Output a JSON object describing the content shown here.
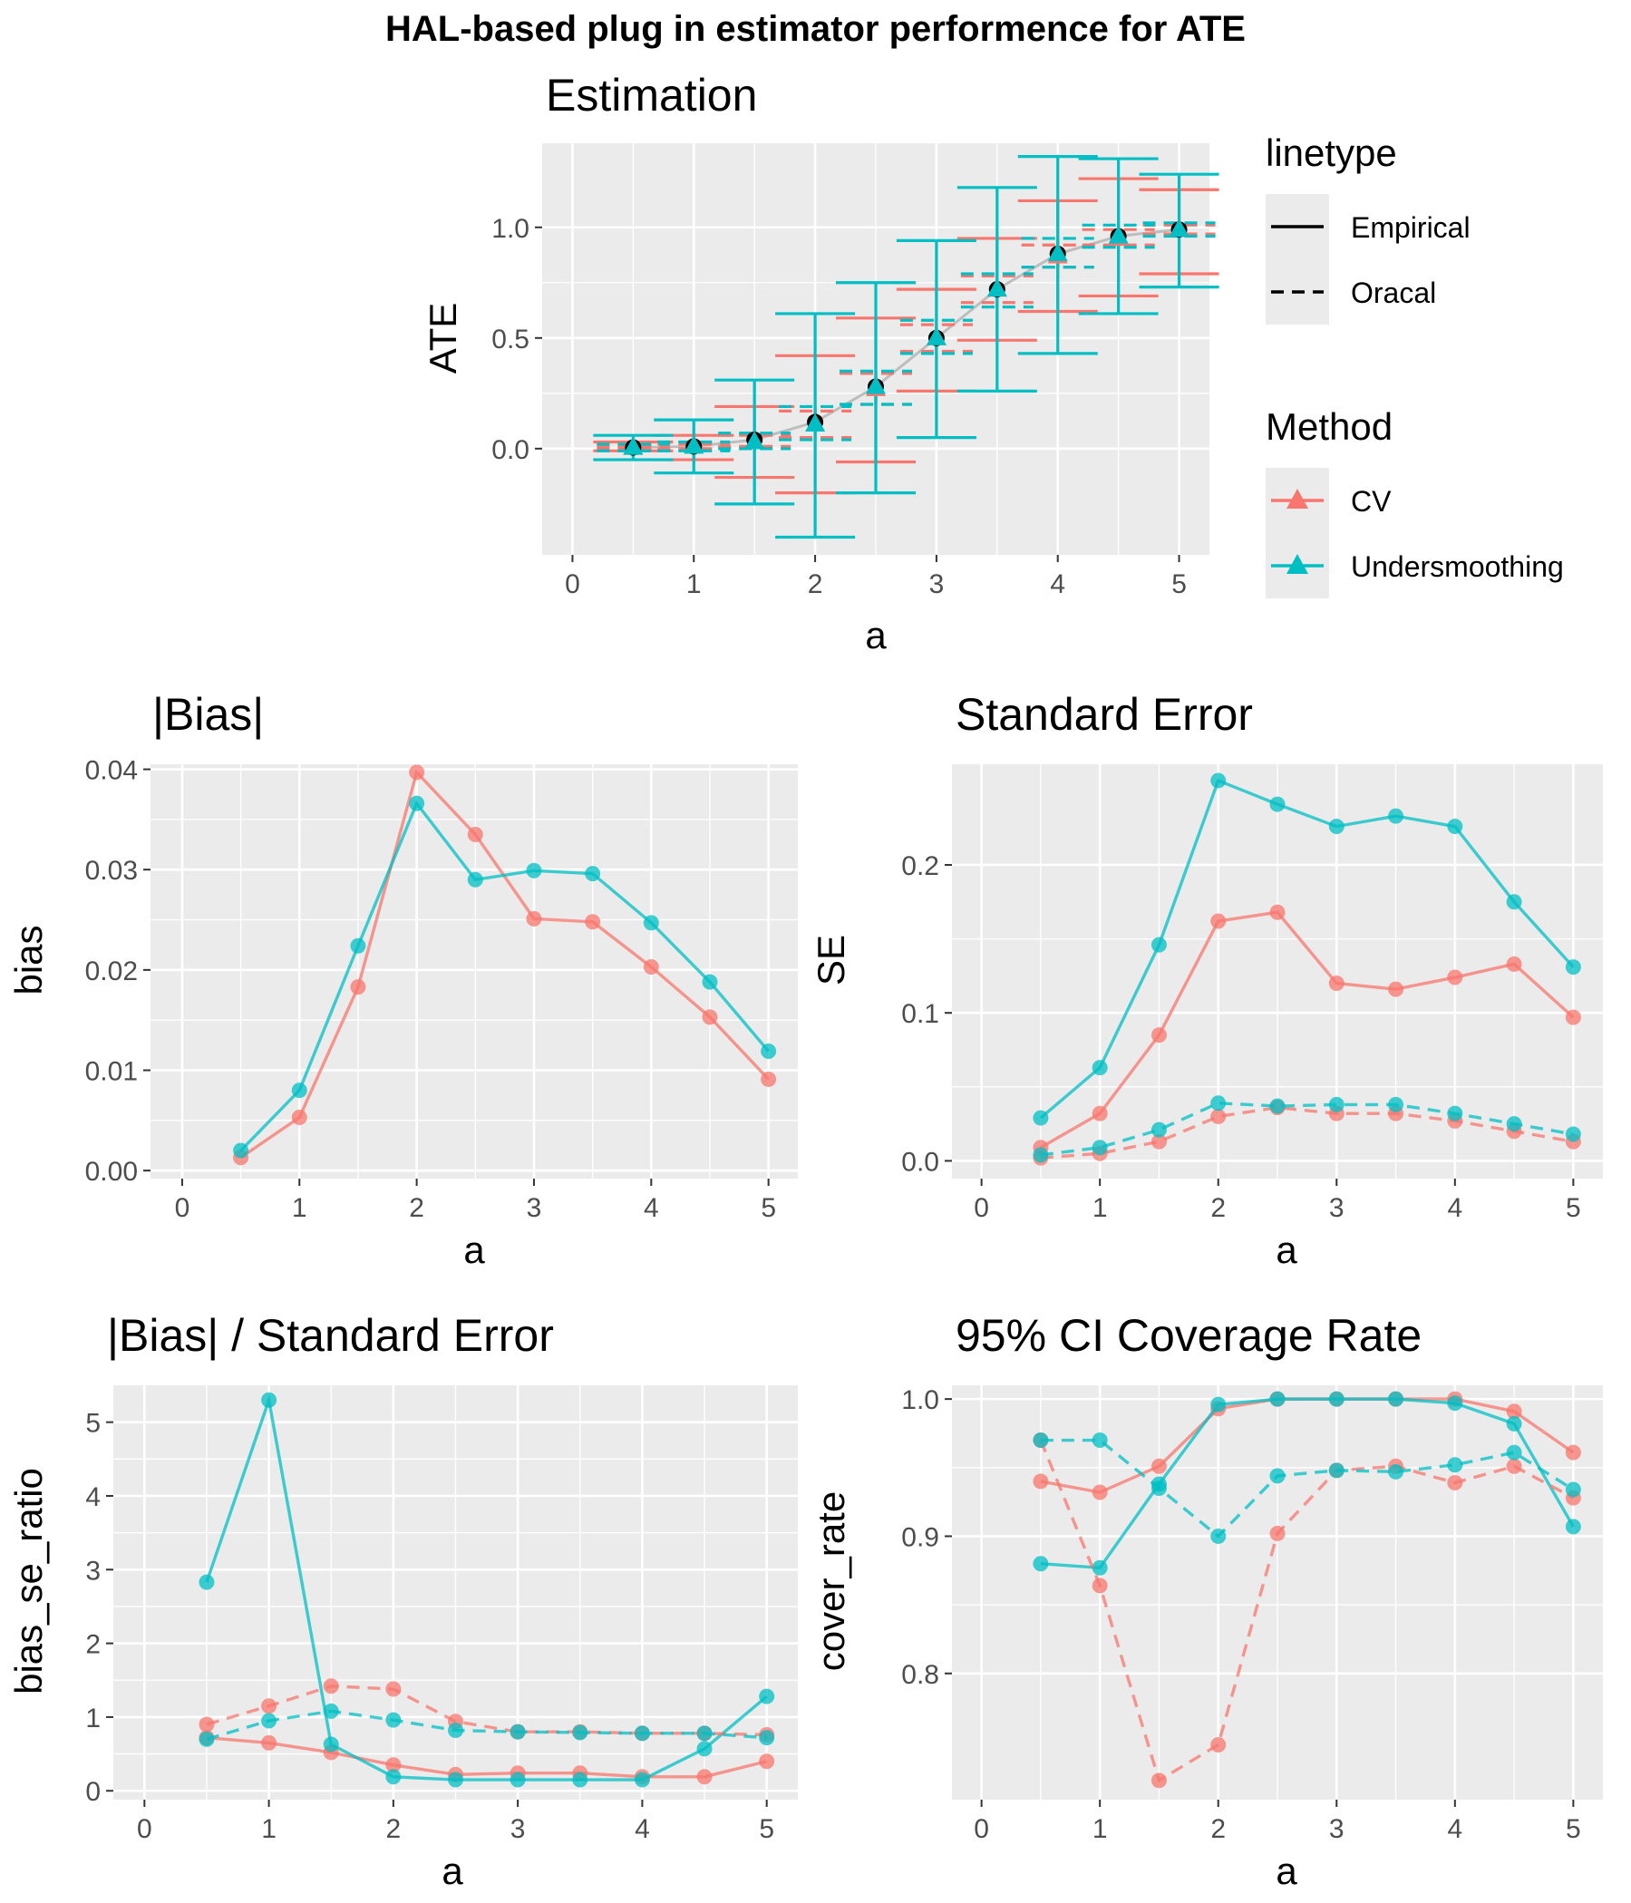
{
  "main_title": "HAL-based plug in estimator performence for ATE",
  "colors": {
    "CV": "#F8766D",
    "Undersmoothing": "#00BFC4",
    "truth": "#bdbdbd",
    "panel_bg": "#ebebeb",
    "grid": "#ffffff"
  },
  "legend": {
    "linetype_title": "linetype",
    "linetype_items": [
      {
        "label": "Empirical",
        "style": "solid"
      },
      {
        "label": "Oracal",
        "style": "dashed"
      }
    ],
    "method_title": "Method",
    "method_items": [
      {
        "label": "CV",
        "color": "#F8766D"
      },
      {
        "label": "Undersmoothing",
        "color": "#00BFC4"
      }
    ]
  },
  "chart_data": [
    {
      "id": "estimation",
      "type": "errorbar",
      "title": "Estimation",
      "xlabel": "a",
      "ylabel": "ATE",
      "xlim": [
        -0.25,
        5.25
      ],
      "ylim": [
        -0.48,
        1.38
      ],
      "x_ticks": [
        0,
        1,
        2,
        3,
        4,
        5
      ],
      "y_ticks": [
        0.0,
        0.5,
        1.0
      ],
      "y_tick_labels": [
        "0.0",
        "0.5",
        "1.0"
      ],
      "x": [
        0.5,
        1.0,
        1.5,
        2.0,
        2.5,
        3.0,
        3.5,
        4.0,
        4.5,
        5.0
      ],
      "truth": [
        0.005,
        0.01,
        0.04,
        0.12,
        0.28,
        0.5,
        0.72,
        0.88,
        0.96,
        0.99
      ],
      "series": [
        {
          "name": "CV",
          "linetype": "Empirical",
          "estimate": [
            0.005,
            0.01,
            0.03,
            0.11,
            0.27,
            0.5,
            0.72,
            0.87,
            0.95,
            0.99
          ],
          "lower": [
            -0.01,
            -0.05,
            -0.13,
            -0.2,
            -0.06,
            0.26,
            0.49,
            0.62,
            0.69,
            0.79
          ],
          "upper": [
            0.03,
            0.06,
            0.19,
            0.42,
            0.59,
            0.72,
            0.95,
            1.12,
            1.22,
            1.17
          ]
        },
        {
          "name": "CV",
          "linetype": "Oracal",
          "estimate": [
            0.005,
            0.01,
            0.03,
            0.11,
            0.27,
            0.5,
            0.72,
            0.87,
            0.95,
            0.99
          ],
          "lower": [
            0.0,
            0.0,
            0.01,
            0.05,
            0.2,
            0.44,
            0.66,
            0.82,
            0.92,
            0.97
          ],
          "upper": [
            0.01,
            0.02,
            0.06,
            0.17,
            0.34,
            0.56,
            0.78,
            0.92,
            0.99,
            1.01
          ]
        },
        {
          "name": "Undersmoothing",
          "linetype": "Empirical",
          "estimate": [
            0.005,
            0.01,
            0.03,
            0.11,
            0.28,
            0.5,
            0.72,
            0.88,
            0.96,
            0.99
          ],
          "lower": [
            -0.05,
            -0.11,
            -0.25,
            -0.4,
            -0.2,
            0.05,
            0.26,
            0.43,
            0.61,
            0.73
          ],
          "upper": [
            0.06,
            0.13,
            0.31,
            0.61,
            0.75,
            0.94,
            1.18,
            1.32,
            1.31,
            1.24
          ]
        },
        {
          "name": "Undersmoothing",
          "linetype": "Oracal",
          "estimate": [
            0.005,
            0.01,
            0.03,
            0.11,
            0.28,
            0.5,
            0.72,
            0.88,
            0.96,
            0.99
          ],
          "lower": [
            -0.01,
            -0.01,
            0.0,
            0.04,
            0.2,
            0.43,
            0.64,
            0.82,
            0.91,
            0.96
          ],
          "upper": [
            0.02,
            0.03,
            0.07,
            0.19,
            0.35,
            0.58,
            0.79,
            0.95,
            1.01,
            1.02
          ]
        }
      ]
    },
    {
      "id": "bias",
      "type": "line",
      "title": "|Bias|",
      "xlabel": "a",
      "ylabel": "bias",
      "xlim": [
        -0.27,
        5.25
      ],
      "ylim": [
        -0.0008,
        0.0405
      ],
      "x_ticks": [
        0,
        1,
        2,
        3,
        4,
        5
      ],
      "y_ticks": [
        0,
        0.01,
        0.02,
        0.03,
        0.04
      ],
      "y_tick_labels": [
        "0.00",
        "0.01",
        "0.02",
        "0.03",
        "0.04"
      ],
      "x": [
        0.5,
        1.0,
        1.5,
        2.0,
        2.5,
        3.0,
        3.5,
        4.0,
        4.5,
        5.0
      ],
      "series": [
        {
          "name": "CV",
          "linetype": "Empirical",
          "values": [
            0.0013,
            0.0053,
            0.0183,
            0.0397,
            0.0335,
            0.0251,
            0.0248,
            0.0203,
            0.0153,
            0.0091
          ]
        },
        {
          "name": "Undersmoothing",
          "linetype": "Empirical",
          "values": [
            0.002,
            0.008,
            0.0224,
            0.0366,
            0.029,
            0.0299,
            0.0296,
            0.0247,
            0.0188,
            0.0119
          ]
        }
      ]
    },
    {
      "id": "se",
      "type": "line",
      "title": "Standard Error",
      "xlabel": "a",
      "ylabel": "SE",
      "xlim": [
        -0.25,
        5.25
      ],
      "ylim": [
        -0.012,
        0.268
      ],
      "x_ticks": [
        0,
        1,
        2,
        3,
        4,
        5
      ],
      "y_ticks": [
        0.0,
        0.1,
        0.2
      ],
      "y_tick_labels": [
        "0.0",
        "0.1",
        "0.2"
      ],
      "x": [
        0.5,
        1.0,
        1.5,
        2.0,
        2.5,
        3.0,
        3.5,
        4.0,
        4.5,
        5.0
      ],
      "series": [
        {
          "name": "CV",
          "linetype": "Empirical",
          "values": [
            0.009,
            0.032,
            0.085,
            0.162,
            0.168,
            0.12,
            0.116,
            0.124,
            0.133,
            0.097
          ]
        },
        {
          "name": "Undersmoothing",
          "linetype": "Empirical",
          "values": [
            0.029,
            0.063,
            0.146,
            0.257,
            0.241,
            0.226,
            0.233,
            0.226,
            0.175,
            0.131
          ]
        },
        {
          "name": "CV",
          "linetype": "Oracal",
          "values": [
            0.002,
            0.005,
            0.013,
            0.03,
            0.036,
            0.032,
            0.032,
            0.027,
            0.02,
            0.013
          ]
        },
        {
          "name": "Undersmoothing",
          "linetype": "Oracal",
          "values": [
            0.004,
            0.009,
            0.021,
            0.039,
            0.037,
            0.038,
            0.038,
            0.032,
            0.025,
            0.018
          ]
        }
      ]
    },
    {
      "id": "ratio",
      "type": "line",
      "title": "|Bias| / Standard Error",
      "xlabel": "a",
      "ylabel": "bias_se_ratio",
      "xlim": [
        -0.25,
        5.25
      ],
      "ylim": [
        -0.12,
        5.5
      ],
      "x_ticks": [
        0,
        1,
        2,
        3,
        4,
        5
      ],
      "y_ticks": [
        0,
        1,
        2,
        3,
        4,
        5
      ],
      "y_tick_labels": [
        "0",
        "1",
        "2",
        "3",
        "4",
        "5"
      ],
      "x": [
        0.5,
        1.0,
        1.5,
        2.0,
        2.5,
        3.0,
        3.5,
        4.0,
        4.5,
        5.0
      ],
      "series": [
        {
          "name": "CV",
          "linetype": "Empirical",
          "values": [
            0.72,
            0.65,
            0.52,
            0.35,
            0.22,
            0.24,
            0.24,
            0.19,
            0.19,
            0.4
          ]
        },
        {
          "name": "Undersmoothing",
          "linetype": "Empirical",
          "values": [
            2.83,
            5.3,
            0.63,
            0.19,
            0.15,
            0.15,
            0.15,
            0.15,
            0.57,
            1.28
          ]
        },
        {
          "name": "CV",
          "linetype": "Oracal",
          "values": [
            0.9,
            1.15,
            1.42,
            1.38,
            0.94,
            0.8,
            0.8,
            0.78,
            0.78,
            0.76
          ]
        },
        {
          "name": "Undersmoothing",
          "linetype": "Oracal",
          "values": [
            0.7,
            0.95,
            1.08,
            0.96,
            0.82,
            0.8,
            0.79,
            0.78,
            0.78,
            0.72
          ]
        }
      ]
    },
    {
      "id": "coverage",
      "type": "line",
      "title": "95% CI Coverage Rate",
      "xlabel": "a",
      "ylabel": "cover_rate",
      "xlim": [
        -0.25,
        5.25
      ],
      "ylim": [
        0.708,
        1.01
      ],
      "x_ticks": [
        0,
        1,
        2,
        3,
        4,
        5
      ],
      "y_ticks": [
        0.8,
        0.9,
        1.0
      ],
      "y_tick_labels": [
        "0.8",
        "0.9",
        "1.0"
      ],
      "x": [
        0.5,
        1.0,
        1.5,
        2.0,
        2.5,
        3.0,
        3.5,
        4.0,
        4.5,
        5.0
      ],
      "series": [
        {
          "name": "CV",
          "linetype": "Empirical",
          "values": [
            0.94,
            0.932,
            0.951,
            0.993,
            1.0,
            1.0,
            1.0,
            1.0,
            0.991,
            0.961
          ]
        },
        {
          "name": "Undersmoothing",
          "linetype": "Empirical",
          "values": [
            0.88,
            0.877,
            0.938,
            0.996,
            1.0,
            1.0,
            1.0,
            0.997,
            0.982,
            0.907
          ]
        },
        {
          "name": "CV",
          "linetype": "Oracal",
          "values": [
            0.97,
            0.864,
            0.722,
            0.748,
            0.902,
            0.948,
            0.951,
            0.939,
            0.951,
            0.928
          ]
        },
        {
          "name": "Undersmoothing",
          "linetype": "Oracal",
          "values": [
            0.97,
            0.97,
            0.935,
            0.9,
            0.944,
            0.948,
            0.947,
            0.952,
            0.961,
            0.934
          ]
        }
      ]
    }
  ]
}
